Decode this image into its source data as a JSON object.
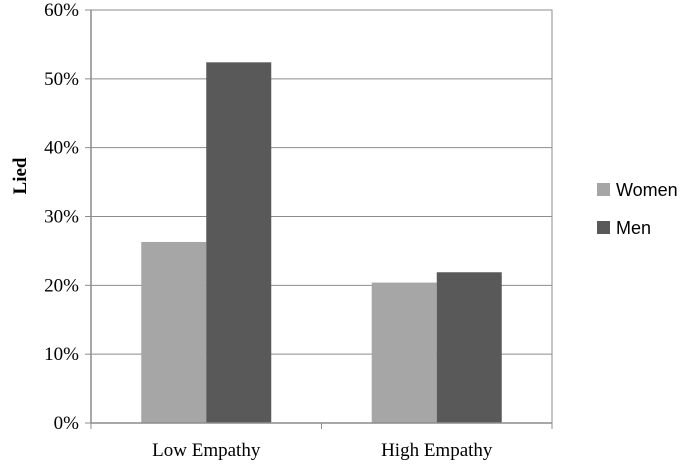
{
  "chart_data": {
    "type": "bar",
    "title": "",
    "xlabel": "",
    "ylabel": "Lied",
    "categories": [
      "Low Empathy",
      "High Empathy"
    ],
    "series": [
      {
        "name": "Women",
        "values": [
          26.3,
          20.4
        ],
        "color": "#a6a6a6"
      },
      {
        "name": "Men",
        "values": [
          52.4,
          21.9
        ],
        "color": "#595959"
      }
    ],
    "ylim": [
      0,
      60
    ],
    "yticks": [
      {
        "value": 0,
        "label": "0%"
      },
      {
        "value": 10,
        "label": "10%"
      },
      {
        "value": 20,
        "label": "20%"
      },
      {
        "value": 30,
        "label": "30%"
      },
      {
        "value": 40,
        "label": "40%"
      },
      {
        "value": 50,
        "label": "50%"
      },
      {
        "value": 60,
        "label": "60%"
      }
    ],
    "grid": true,
    "legend_position": "right"
  }
}
